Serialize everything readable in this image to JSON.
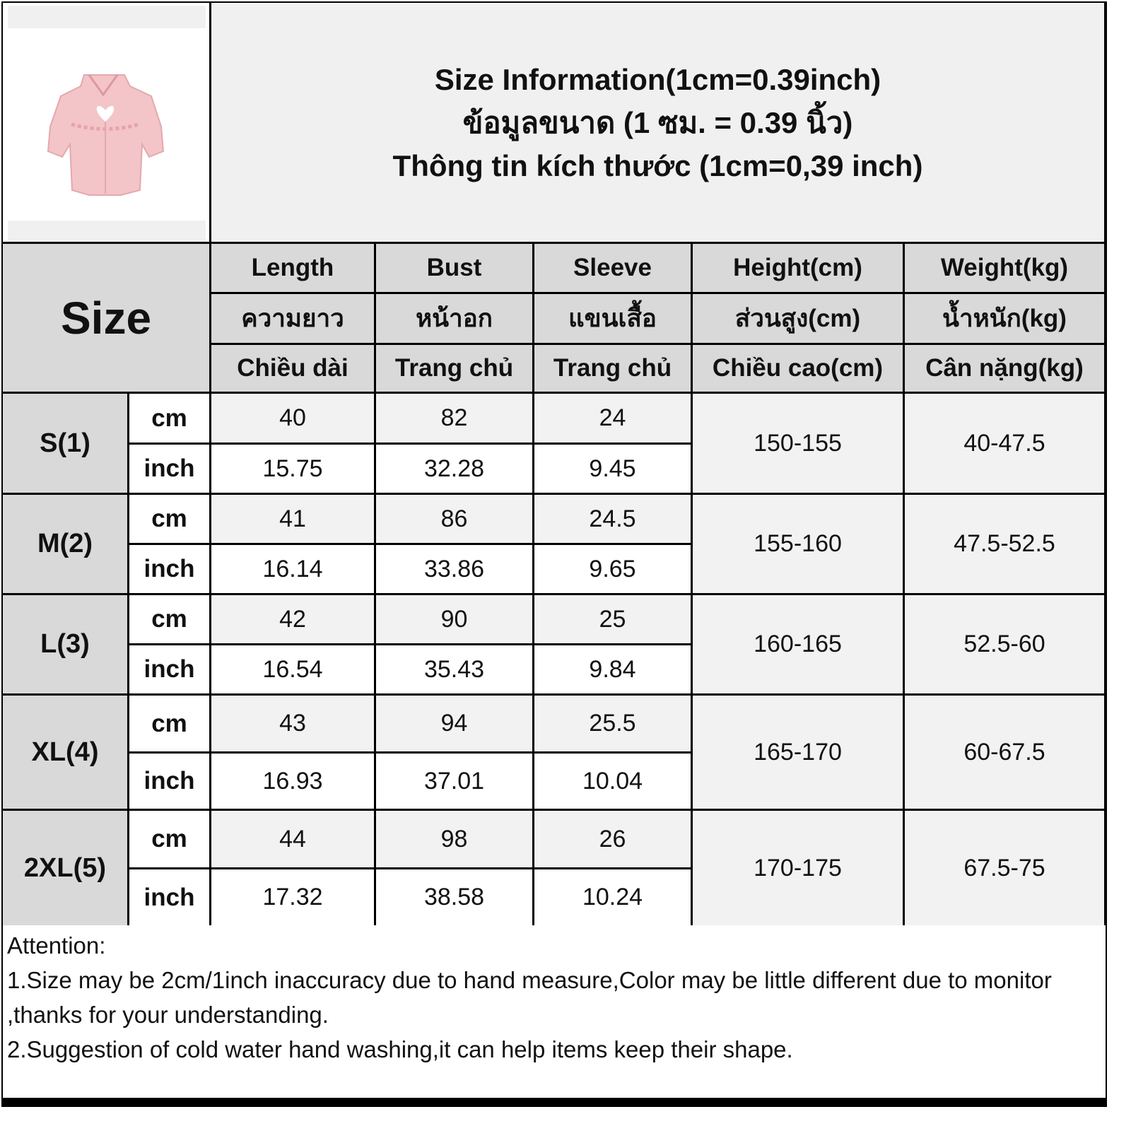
{
  "title": {
    "line1": "Size Information(1cm=0.39inch)",
    "line2": "ข้อมูลขนาด (1 ซม. = 0.39 นิ้ว)",
    "line3": "Thông tin kích thước (1cm=0,39 inch)"
  },
  "product_image": "pink-puff-sleeve-crop-shirt-with-heart-cutout",
  "size_label": "Size",
  "columns": [
    {
      "en": "Length",
      "th": "ความยาว",
      "vi": "Chiều dài"
    },
    {
      "en": "Bust",
      "th": "หน้าอก",
      "vi": "Trang chủ"
    },
    {
      "en": "Sleeve",
      "th": "แขนเสื้อ",
      "vi": "Trang chủ"
    },
    {
      "en": "Height(cm)",
      "th": "ส่วนสูง(cm)",
      "vi": "Chiều cao(cm)"
    },
    {
      "en": "Weight(kg)",
      "th": "น้ำหนัก(kg)",
      "vi": "Cân nặng(kg)"
    }
  ],
  "units": {
    "cm": "cm",
    "inch": "inch"
  },
  "rows": [
    {
      "size": "S(1)",
      "cm": [
        "40",
        "82",
        "24"
      ],
      "inch": [
        "15.75",
        "32.28",
        "9.45"
      ],
      "height": "150-155",
      "weight": "40-47.5"
    },
    {
      "size": "M(2)",
      "cm": [
        "41",
        "86",
        "24.5"
      ],
      "inch": [
        "16.14",
        "33.86",
        "9.65"
      ],
      "height": "155-160",
      "weight": "47.5-52.5"
    },
    {
      "size": "L(3)",
      "cm": [
        "42",
        "90",
        "25"
      ],
      "inch": [
        "16.54",
        "35.43",
        "9.84"
      ],
      "height": "160-165",
      "weight": "52.5-60"
    },
    {
      "size": "XL(4)",
      "cm": [
        "43",
        "94",
        "25.5"
      ],
      "inch": [
        "16.93",
        "37.01",
        "10.04"
      ],
      "height": "165-170",
      "weight": "60-67.5"
    },
    {
      "size": "2XL(5)",
      "cm": [
        "44",
        "98",
        "26"
      ],
      "inch": [
        "17.32",
        "38.58",
        "10.24"
      ],
      "height": "170-175",
      "weight": "67.5-75"
    }
  ],
  "notes": {
    "heading": "Attention:",
    "line1": "1.Size may be 2cm/1inch inaccuracy due to hand measure,Color may be little different due to monitor ,thanks for your understanding.",
    "line2": "2.Suggestion of cold water hand washing,it can help items keep their shape."
  }
}
